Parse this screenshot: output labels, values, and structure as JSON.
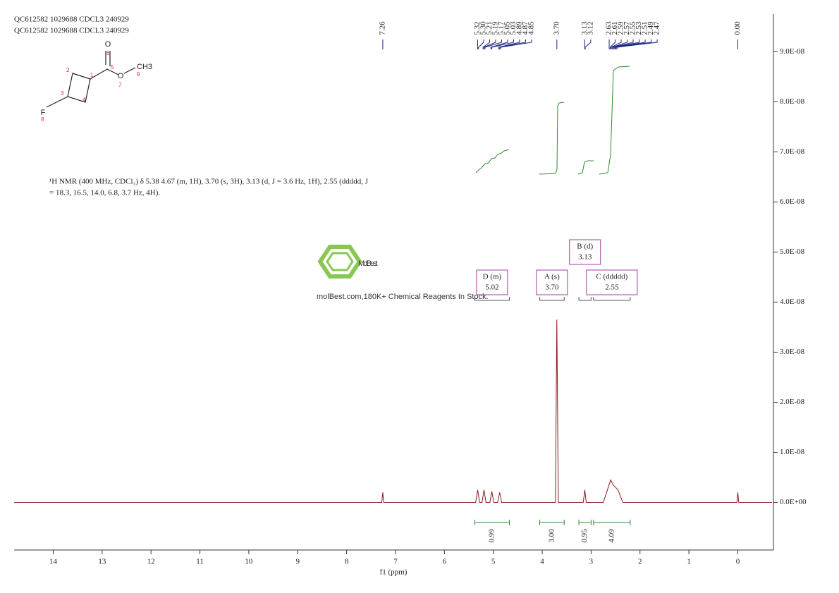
{
  "chart_data": {
    "type": "line",
    "titles": [
      "QC612582 1029688 CDCL3 240929",
      "QC612582 1029688 CDCL3 240929"
    ],
    "annotation": [
      "¹H NMR (400 MHz, CDCl₃) δ 5.38   4.67 (m, 1H), 3.70 (s, 3H), 3.13 (d, J = 3.6 Hz, 1H), 2.55 (ddddd, J",
      "= 18.3, 16.5, 14.0, 6.8, 3.7 Hz, 4H)."
    ],
    "xlabel": "f1 (ppm)",
    "xlim": [
      14.8,
      -0.7
    ],
    "ylim": [
      -9.5e-09,
      9.75e-08
    ],
    "xticks": [
      14,
      13,
      12,
      11,
      10,
      9,
      8,
      7,
      6,
      5,
      4,
      3,
      2,
      1,
      0
    ],
    "yticks": [
      {
        "value": 0,
        "label": "0.0E+00"
      },
      {
        "value": 1e-08,
        "label": "1.0E-08"
      },
      {
        "value": 2e-08,
        "label": "2.0E-08"
      },
      {
        "value": 3e-08,
        "label": "3.0E-08"
      },
      {
        "value": 4e-08,
        "label": "4.0E-08"
      },
      {
        "value": 5e-08,
        "label": "5.0E-08"
      },
      {
        "value": 6e-08,
        "label": "6.0E-08"
      },
      {
        "value": 7e-08,
        "label": "7.0E-08"
      },
      {
        "value": 8e-08,
        "label": "8.0E-08"
      },
      {
        "value": 9e-08,
        "label": "9.0E-08"
      }
    ],
    "x": [
      14.8,
      7.28,
      7.26,
      7.24,
      5.36,
      5.32,
      5.28,
      5.23,
      5.19,
      5.15,
      5.07,
      5.03,
      4.99,
      4.91,
      4.87,
      4.83,
      3.73,
      3.7,
      3.67,
      3.16,
      3.13,
      3.1,
      2.75,
      2.65,
      2.6,
      2.55,
      2.5,
      2.45,
      2.35,
      0.02,
      0,
      -0.02,
      -0.7
    ],
    "color": "#8b1a1a",
    "values": [
      0,
      0,
      2e-09,
      0,
      0,
      2.5e-09,
      0,
      0,
      2.5e-09,
      0,
      0,
      2.2e-09,
      0,
      0,
      2e-09,
      0,
      0,
      3.65e-08,
      0,
      0,
      2.5e-09,
      0,
      0,
      3e-09,
      4.5e-09,
      3.5e-09,
      3e-09,
      2.5e-09,
      0,
      0,
      2e-09,
      0,
      0
    ],
    "peaks": [
      7.26,
      5.32,
      {
        "value": 5.3,
        "label": "5.30"
      },
      5.21,
      5.19,
      5.17,
      5.05,
      5.03,
      4.89,
      4.87,
      4.85,
      {
        "value": 3.7,
        "label": "3.70"
      },
      3.13,
      3.12,
      2.63,
      2.61,
      2.59,
      2.57,
      2.55,
      2.53,
      2.51,
      2.49,
      2.47,
      {
        "value": 0,
        "label": "0.00"
      }
    ],
    "multiplets": [
      {
        "label": "D (m)",
        "shift": "5.02",
        "range": [
          5.38,
          4.67
        ],
        "integral": "0.99"
      },
      {
        "label": "A (s)",
        "shift": "3.70",
        "range": [
          4.05,
          3.55
        ],
        "integral": "3.00"
      },
      {
        "label": "B (d)",
        "shift": "3.13",
        "range": [
          3.25,
          3.0
        ],
        "integral": "0.95"
      },
      {
        "label": "C (ddddd)",
        "shift": "2.55",
        "range": [
          2.95,
          2.2
        ],
        "integral": "4.09"
      }
    ]
  },
  "structure": {
    "atoms": [
      "O",
      "O",
      "CH3",
      "F"
    ],
    "numbers": [
      "1",
      "2",
      "3",
      "4",
      "5",
      "6",
      "7",
      "8",
      "9"
    ]
  },
  "watermark": {
    "brand": "MolBest",
    "tagline": "molBest.com,180K+ Chemical Reagents In Stock."
  }
}
